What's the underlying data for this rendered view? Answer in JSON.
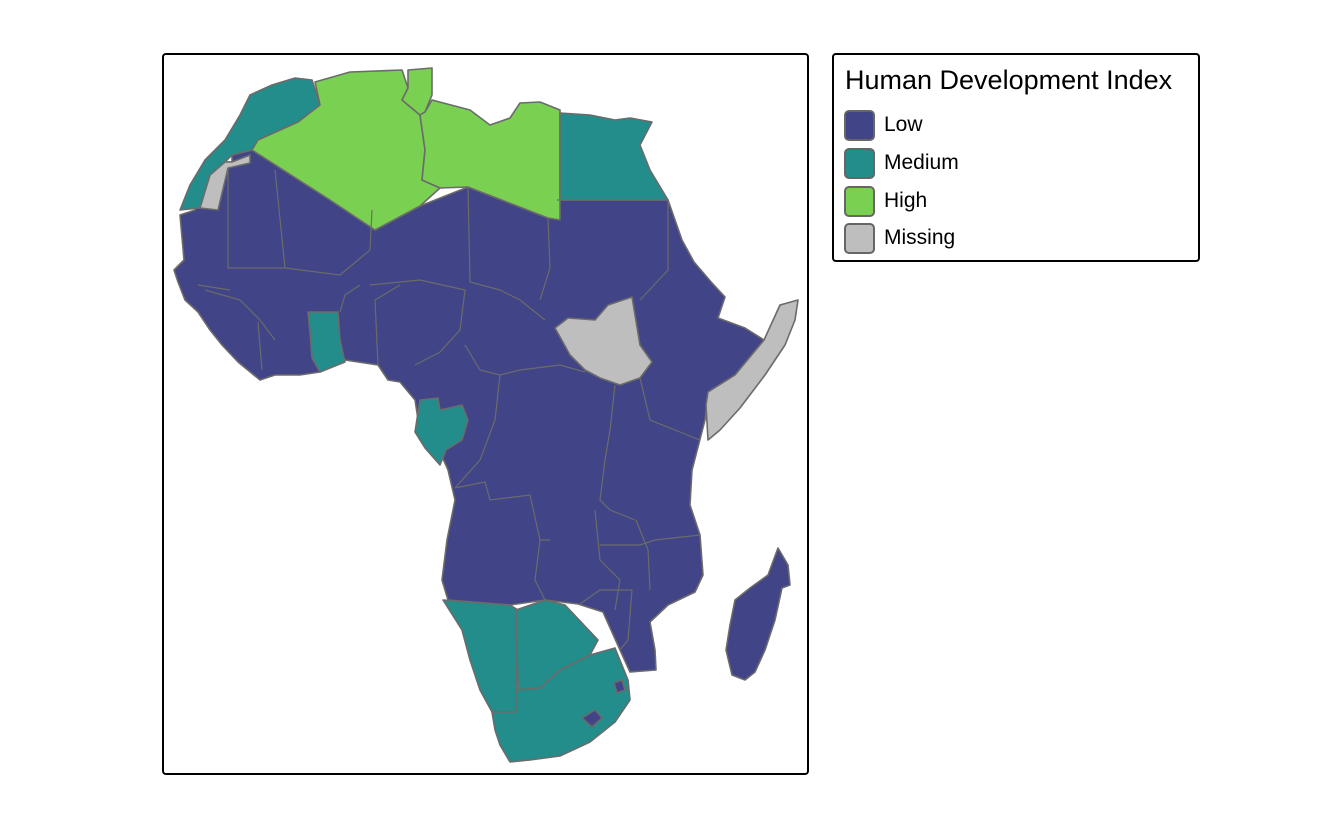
{
  "legend": {
    "title": "Human Development Index",
    "items": [
      {
        "key": "low",
        "label": "Low",
        "color": "#414487"
      },
      {
        "key": "medium",
        "label": "Medium",
        "color": "#228d8a"
      },
      {
        "key": "high",
        "label": "High",
        "color": "#7ad151"
      },
      {
        "key": "missing",
        "label": "Missing",
        "color": "#bebebe"
      }
    ]
  },
  "colors": {
    "border": "#6b6b6b",
    "frame": "#000000"
  },
  "map": {
    "region": "Africa",
    "countries": [
      {
        "name": "Morocco",
        "class": "medium"
      },
      {
        "name": "Western Sahara",
        "class": "missing"
      },
      {
        "name": "Algeria",
        "class": "high"
      },
      {
        "name": "Tunisia",
        "class": "high"
      },
      {
        "name": "Libya",
        "class": "high"
      },
      {
        "name": "Egypt",
        "class": "medium"
      },
      {
        "name": "Ghana",
        "class": "medium"
      },
      {
        "name": "Gabon",
        "class": "medium"
      },
      {
        "name": "South Sudan",
        "class": "missing"
      },
      {
        "name": "Somalia",
        "class": "missing"
      },
      {
        "name": "Namibia",
        "class": "medium"
      },
      {
        "name": "Botswana",
        "class": "medium"
      },
      {
        "name": "South Africa",
        "class": "medium"
      },
      {
        "name": "Madagascar",
        "class": "low"
      },
      {
        "name": "Sub-Saharan countries",
        "class": "low"
      }
    ]
  }
}
